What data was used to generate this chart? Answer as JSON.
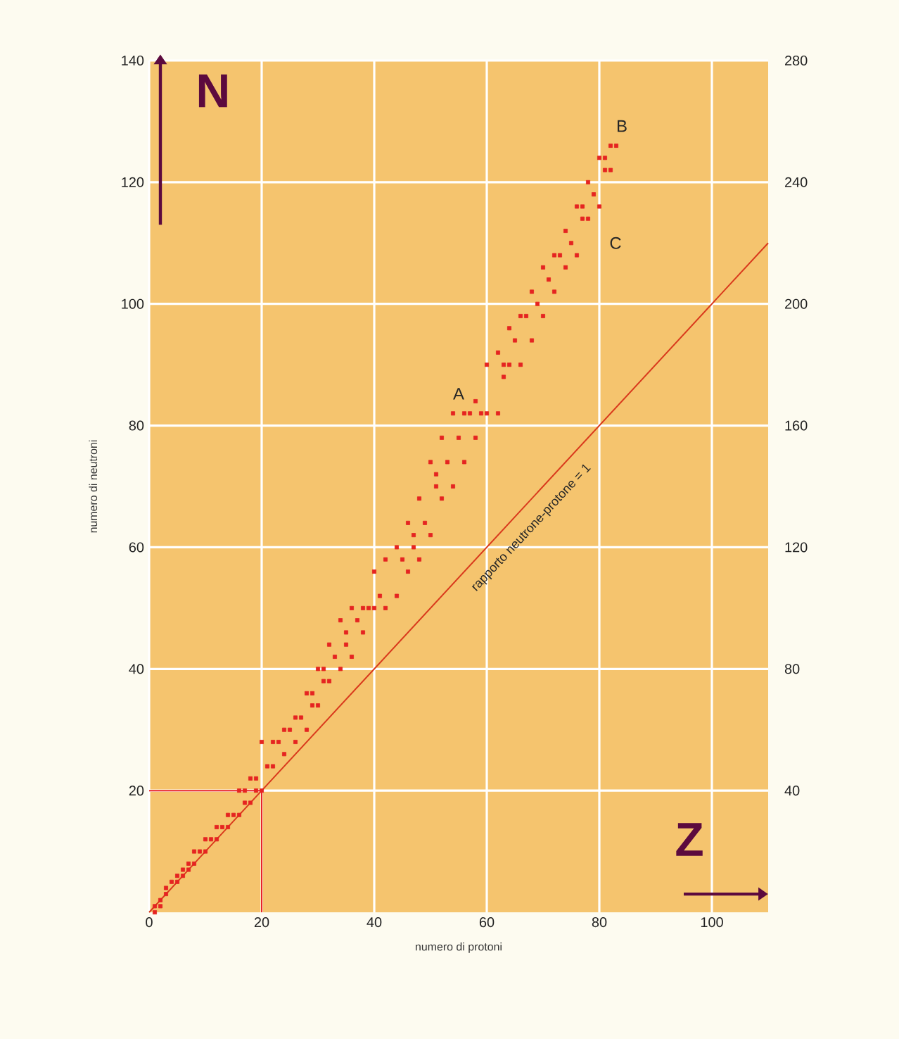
{
  "chart_data": {
    "type": "scatter",
    "xlabel": "numero di protoni",
    "ylabel": "numero di neutroni",
    "xlim": [
      0,
      110
    ],
    "ylim": [
      0,
      140
    ],
    "y2lim": [
      0,
      280
    ],
    "xticks": [
      0,
      20,
      40,
      60,
      80,
      100
    ],
    "yticks": [
      20,
      40,
      60,
      80,
      100,
      120,
      140
    ],
    "y2ticks": [
      40,
      80,
      120,
      160,
      200,
      240,
      280
    ],
    "grid": true,
    "series": [
      {
        "color": "#e52421",
        "marker": "square",
        "x": [
          1,
          1,
          2,
          2,
          3,
          3,
          4,
          5,
          5,
          6,
          6,
          7,
          7,
          8,
          8,
          9,
          10,
          10,
          11,
          12,
          12,
          13,
          14,
          14,
          15,
          16,
          16,
          17,
          17,
          18,
          18,
          19,
          19,
          20,
          20,
          21,
          22,
          22,
          23,
          24,
          24,
          25,
          26,
          26,
          27,
          28,
          28,
          29,
          29,
          30,
          30,
          31,
          31,
          32,
          32,
          33,
          34,
          34,
          35,
          35,
          36,
          36,
          37,
          38,
          38,
          39,
          40,
          40,
          41,
          42,
          42,
          44,
          44,
          45,
          46,
          46,
          47,
          47,
          48,
          48,
          49,
          50,
          50,
          51,
          51,
          52,
          52,
          53,
          54,
          54,
          55,
          56,
          56,
          57,
          58,
          58,
          59,
          60,
          60,
          62,
          62,
          63,
          63,
          64,
          64,
          65,
          66,
          66,
          67,
          68,
          68,
          69,
          70,
          70,
          71,
          72,
          72,
          73,
          74,
          74,
          75,
          76,
          76,
          77,
          77,
          78,
          78,
          79,
          80,
          80,
          81,
          81,
          82,
          82,
          83
        ],
        "values": [
          0,
          1,
          1,
          2,
          3,
          4,
          5,
          5,
          6,
          6,
          7,
          7,
          8,
          8,
          10,
          10,
          10,
          12,
          12,
          12,
          14,
          14,
          14,
          16,
          16,
          16,
          20,
          18,
          20,
          18,
          22,
          20,
          22,
          20,
          28,
          24,
          24,
          28,
          28,
          26,
          30,
          30,
          28,
          32,
          32,
          30,
          36,
          34,
          36,
          34,
          40,
          38,
          40,
          38,
          44,
          42,
          40,
          48,
          44,
          46,
          42,
          50,
          48,
          46,
          50,
          50,
          50,
          56,
          52,
          50,
          58,
          52,
          60,
          58,
          56,
          64,
          60,
          62,
          58,
          68,
          64,
          62,
          74,
          70,
          72,
          68,
          78,
          74,
          70,
          82,
          78,
          74,
          82,
          82,
          78,
          84,
          82,
          82,
          90,
          82,
          92,
          88,
          90,
          90,
          96,
          94,
          90,
          98,
          98,
          94,
          102,
          100,
          98,
          106,
          104,
          102,
          108,
          108,
          106,
          112,
          110,
          108,
          116,
          114,
          116,
          114,
          120,
          118,
          116,
          124,
          122,
          124,
          122,
          126,
          126
        ]
      },
      {
        "type": "line",
        "color": "#d9391c",
        "line_style": "solid",
        "x": [
          0,
          110
        ],
        "values": [
          0,
          110
        ]
      },
      {
        "type": "line",
        "color": "#e8232a",
        "line_style": "solid",
        "x": [
          0,
          20,
          20
        ],
        "values": [
          20,
          20,
          0
        ]
      }
    ],
    "annotations": [
      "A",
      "B",
      "C",
      "rapporto neutrone-protone = 1",
      "N",
      "Z"
    ]
  }
}
